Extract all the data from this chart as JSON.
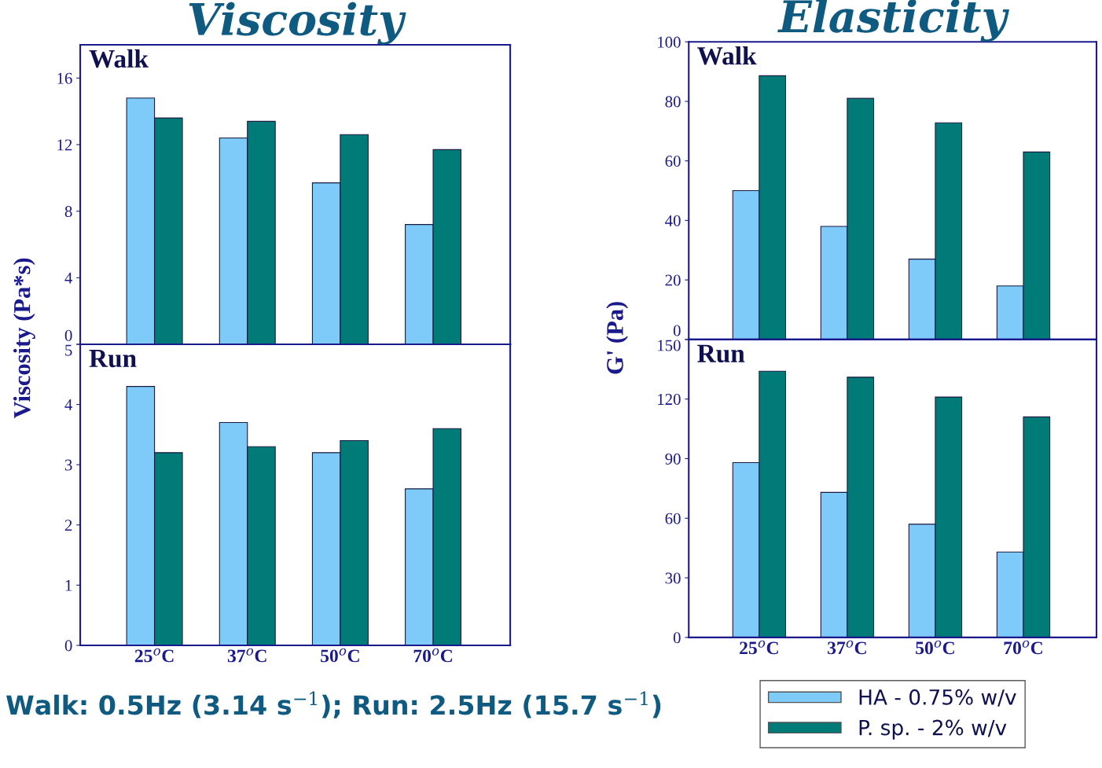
{
  "chart_data": [
    {
      "type": "bar",
      "title": "Viscosity",
      "annotations": [
        "Walk"
      ],
      "categories": [
        null,
        null,
        null,
        null
      ],
      "series": [
        {
          "color": "#7ecbfa",
          "values": [
            14.8,
            12.4,
            9.7,
            7.2
          ]
        },
        {
          "color": "#007b78",
          "values": [
            13.6,
            13.4,
            12.6,
            11.7
          ]
        }
      ],
      "ylim": [
        0,
        18
      ],
      "yticks": [
        0,
        4,
        8,
        12,
        16
      ],
      "tick_labels": "y",
      "grid": false,
      "legend": false
    },
    {
      "type": "bar",
      "ylabel": "Viscosity (Pa*s)",
      "annotations": [
        "Run",
        "Walk: 0.5Hz (3.14 s$^{−1}$); Run: 2.5Hz (15.7 s$^{−1}$)"
      ],
      "categories": [
        "25$^{o}$C",
        "37$^{o}$C",
        "50$^{o}$C",
        "70$^{o}$C"
      ],
      "series": [
        {
          "color": "#7ecbfa",
          "values": [
            4.3,
            3.7,
            3.2,
            2.6
          ]
        },
        {
          "color": "#007b78",
          "values": [
            3.2,
            3.3,
            3.4,
            3.6
          ]
        }
      ],
      "ylim": [
        0,
        5
      ],
      "yticks": [
        0,
        1,
        2,
        3,
        4,
        5
      ],
      "grid": false,
      "legend": false
    },
    {
      "type": "bar",
      "title": "Elasticity",
      "annotations": [
        "Walk"
      ],
      "categories": [
        null,
        null,
        null,
        null
      ],
      "series": [
        {
          "color": "#7ecbfa",
          "values": [
            50,
            38,
            27,
            18
          ]
        },
        {
          "color": "#007b78",
          "values": [
            88.6,
            81,
            72.8,
            63
          ]
        }
      ],
      "ylim": [
        0,
        100
      ],
      "yticks": [
        0,
        20,
        40,
        60,
        80,
        100
      ],
      "tick_labels": "y",
      "grid": false,
      "legend": false
    },
    {
      "type": "bar",
      "ylabel": "G' (Pa)",
      "annotations": [
        "Run"
      ],
      "categories": [
        "25$^{o}$C",
        "37$^{o}$C",
        "50$^{o}$C",
        "70$^{o}$C"
      ],
      "series": [
        {
          "name": "HA - 0.75% w/v",
          "color": "#7ecbfa",
          "values": [
            88,
            73,
            57,
            43
          ]
        },
        {
          "name": "P. sp. - 2% w/v",
          "color": "#007b78",
          "values": [
            134,
            131,
            121,
            111
          ]
        }
      ],
      "ylim": [
        0,
        150
      ],
      "yticks": [
        0,
        30,
        60,
        90,
        120,
        150
      ],
      "grid": false,
      "legend": "bottom"
    }
  ]
}
